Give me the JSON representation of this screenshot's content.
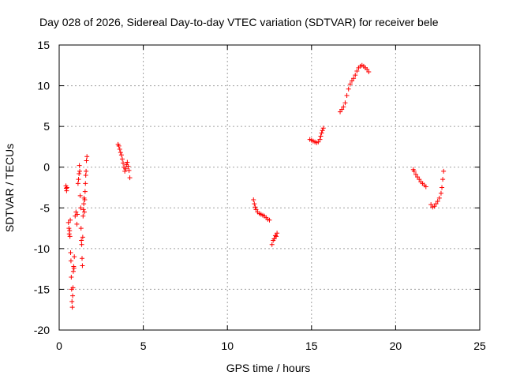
{
  "chart_data": {
    "type": "scatter",
    "title": "Day 028 of 2026, Sidereal Day-to-day VTEC variation (SDTVAR) for receiver bele",
    "xlabel": "GPS time / hours",
    "ylabel": "SDTVAR / TECUs",
    "xlim": [
      0,
      25
    ],
    "ylim": [
      -20,
      15
    ],
    "xticks": [
      0,
      5,
      10,
      15,
      20,
      25
    ],
    "yticks": [
      -20,
      -15,
      -10,
      -5,
      0,
      5,
      10,
      15
    ],
    "grid": true,
    "marker": "+",
    "color": "#ff0000",
    "series": [
      {
        "name": "SDTVAR",
        "points": [
          [
            0.4,
            -2.3
          ],
          [
            0.42,
            -2.6
          ],
          [
            0.44,
            -2.9
          ],
          [
            0.46,
            -2.5
          ],
          [
            0.55,
            -6.8
          ],
          [
            0.58,
            -7.5
          ],
          [
            0.6,
            -8.2
          ],
          [
            0.62,
            -7.8
          ],
          [
            0.64,
            -8.5
          ],
          [
            0.66,
            -6.5
          ],
          [
            0.68,
            -10.5
          ],
          [
            0.7,
            -11.5
          ],
          [
            0.72,
            -13.5
          ],
          [
            0.74,
            -15.0
          ],
          [
            0.76,
            -16.5
          ],
          [
            0.78,
            -17.2
          ],
          [
            0.8,
            -15.8
          ],
          [
            0.82,
            -14.8
          ],
          [
            0.84,
            -12.8
          ],
          [
            0.86,
            -12.2
          ],
          [
            0.88,
            -12.4
          ],
          [
            0.9,
            -11.0
          ],
          [
            0.95,
            -6.0
          ],
          [
            1.0,
            -5.5
          ],
          [
            1.05,
            -7.0
          ],
          [
            1.08,
            -5.8
          ],
          [
            1.12,
            -2.0
          ],
          [
            1.15,
            -1.5
          ],
          [
            1.18,
            -0.8
          ],
          [
            1.2,
            0.2
          ],
          [
            1.22,
            -0.5
          ],
          [
            1.25,
            -3.5
          ],
          [
            1.28,
            -5.0
          ],
          [
            1.3,
            -7.5
          ],
          [
            1.32,
            -9.0
          ],
          [
            1.34,
            -9.5
          ],
          [
            1.36,
            -11.2
          ],
          [
            1.38,
            -12.1
          ],
          [
            1.4,
            -8.6
          ],
          [
            1.42,
            -6.0
          ],
          [
            1.44,
            -5.2
          ],
          [
            1.46,
            -4.5
          ],
          [
            1.48,
            -3.8
          ],
          [
            1.5,
            -5.5
          ],
          [
            1.52,
            -4.0
          ],
          [
            1.54,
            -3.0
          ],
          [
            1.56,
            -2.0
          ],
          [
            1.58,
            -1.0
          ],
          [
            1.6,
            -0.5
          ],
          [
            1.62,
            0.8
          ],
          [
            1.65,
            1.3
          ],
          [
            3.5,
            2.8
          ],
          [
            3.55,
            2.6
          ],
          [
            3.6,
            2.2
          ],
          [
            3.65,
            1.8
          ],
          [
            3.7,
            1.5
          ],
          [
            3.75,
            1.0
          ],
          [
            3.8,
            0.5
          ],
          [
            3.85,
            0.0
          ],
          [
            3.9,
            -0.5
          ],
          [
            3.95,
            -0.2
          ],
          [
            4.0,
            0.3
          ],
          [
            4.05,
            0.6
          ],
          [
            4.1,
            0.1
          ],
          [
            4.15,
            -0.4
          ],
          [
            4.2,
            -1.3
          ],
          [
            11.55,
            -4.0
          ],
          [
            11.6,
            -4.5
          ],
          [
            11.65,
            -4.9
          ],
          [
            11.7,
            -5.2
          ],
          [
            11.8,
            -5.5
          ],
          [
            11.9,
            -5.7
          ],
          [
            12.0,
            -5.8
          ],
          [
            12.1,
            -5.9
          ],
          [
            12.2,
            -6.0
          ],
          [
            12.3,
            -6.2
          ],
          [
            12.4,
            -6.4
          ],
          [
            12.5,
            -6.5
          ],
          [
            12.65,
            -9.5
          ],
          [
            12.72,
            -9.0
          ],
          [
            12.78,
            -8.8
          ],
          [
            12.85,
            -8.4
          ],
          [
            12.9,
            -8.5
          ],
          [
            12.95,
            -8.1
          ],
          [
            14.9,
            3.4
          ],
          [
            15.0,
            3.3
          ],
          [
            15.1,
            3.2
          ],
          [
            15.2,
            3.1
          ],
          [
            15.3,
            3.0
          ],
          [
            15.4,
            3.1
          ],
          [
            15.5,
            3.4
          ],
          [
            15.55,
            3.8
          ],
          [
            15.6,
            4.2
          ],
          [
            15.65,
            4.5
          ],
          [
            15.7,
            4.8
          ],
          [
            16.7,
            6.8
          ],
          [
            16.8,
            7.1
          ],
          [
            16.9,
            7.4
          ],
          [
            17.0,
            7.9
          ],
          [
            17.1,
            8.8
          ],
          [
            17.2,
            9.6
          ],
          [
            17.3,
            10.2
          ],
          [
            17.4,
            10.6
          ],
          [
            17.5,
            10.9
          ],
          [
            17.6,
            11.3
          ],
          [
            17.7,
            11.8
          ],
          [
            17.8,
            12.2
          ],
          [
            17.9,
            12.4
          ],
          [
            18.0,
            12.5
          ],
          [
            18.1,
            12.4
          ],
          [
            18.2,
            12.2
          ],
          [
            18.3,
            12.0
          ],
          [
            18.4,
            11.7
          ],
          [
            21.05,
            -0.3
          ],
          [
            21.1,
            -0.5
          ],
          [
            21.2,
            -0.9
          ],
          [
            21.3,
            -1.2
          ],
          [
            21.4,
            -1.5
          ],
          [
            21.5,
            -1.8
          ],
          [
            21.6,
            -2.0
          ],
          [
            21.7,
            -2.2
          ],
          [
            21.8,
            -2.4
          ],
          [
            22.1,
            -4.6
          ],
          [
            22.2,
            -4.9
          ],
          [
            22.3,
            -4.8
          ],
          [
            22.4,
            -4.5
          ],
          [
            22.5,
            -4.2
          ],
          [
            22.6,
            -3.8
          ],
          [
            22.7,
            -3.2
          ],
          [
            22.75,
            -2.5
          ],
          [
            22.8,
            -1.5
          ],
          [
            22.85,
            -0.5
          ]
        ]
      }
    ]
  }
}
